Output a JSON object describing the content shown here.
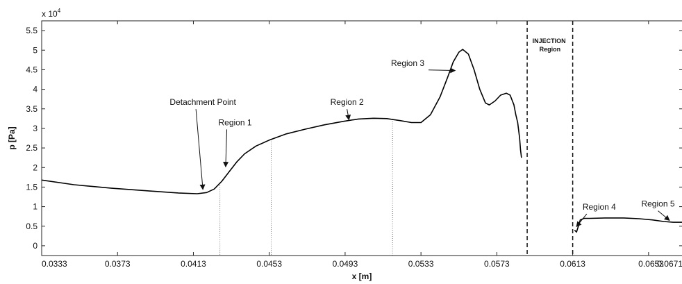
{
  "chart_data": {
    "type": "line",
    "title": "",
    "xlabel": "x [m]",
    "ylabel": "p [Pa]",
    "y_multiplier": "x 10",
    "y_multiplier_exponent": "4",
    "xlim": [
      0.0333,
      0.0671
    ],
    "ylim": [
      -2500,
      57500
    ],
    "xticks": [
      0.0333,
      0.0373,
      0.0413,
      0.0453,
      0.0493,
      0.0533,
      0.0573,
      0.0613,
      0.0653,
      0.0671
    ],
    "xtick_labels": [
      "0.0333",
      "0.0373",
      "0.0413",
      "0.0453",
      "0.0493",
      "0.0533",
      "0.0573",
      "0.0613",
      "0.0653",
      "0.0671"
    ],
    "yticks": [
      0,
      5000,
      10000,
      15000,
      20000,
      25000,
      30000,
      35000,
      40000,
      45000,
      50000,
      55000
    ],
    "ytick_labels": [
      "0",
      "0.5",
      "1",
      "1.5",
      "2",
      "2.5",
      "3",
      "3.5",
      "4",
      "4.5",
      "5",
      "5.5"
    ],
    "grid": false,
    "legend": "none",
    "series": [
      {
        "segments": [
          {
            "x": [
              0.0333,
              0.035,
              0.037,
              0.039,
              0.0405,
              0.0415,
              0.042,
              0.0424,
              0.0428,
              0.0432,
              0.0436,
              0.044,
              0.0446,
              0.0453,
              0.0462,
              0.0472,
              0.0482,
              0.0492,
              0.05,
              0.0508,
              0.0515,
              0.0522,
              0.0528,
              0.0533,
              0.0538,
              0.0543,
              0.0547,
              0.055,
              0.0553,
              0.0555,
              0.0558,
              0.0561,
              0.0564,
              0.0567,
              0.0569,
              0.0572,
              0.0575,
              0.0578,
              0.058,
              0.0582,
              0.0583,
              0.0584,
              0.0585,
              0.05855,
              0.0586
            ],
            "y": [
              16800,
              15600,
              14700,
              14000,
              13500,
              13300,
              13600,
              14500,
              16500,
              19000,
              21500,
              23500,
              25500,
              27000,
              28600,
              29800,
              30900,
              31800,
              32400,
              32600,
              32500,
              32000,
              31500,
              31500,
              33500,
              38000,
              43000,
              47000,
              49500,
              50200,
              49000,
              45000,
              40000,
              36500,
              36000,
              37000,
              38500,
              39000,
              38500,
              36000,
              33500,
              31500,
              27500,
              24500,
              22500
            ]
          },
          {
            "x": [
              0.0614,
              0.0615,
              0.0616,
              0.0617,
              0.0619,
              0.0622,
              0.063,
              0.064,
              0.0648,
              0.0655,
              0.0661,
              0.0666,
              0.0671
            ],
            "y": [
              4000,
              3500,
              5000,
              6600,
              7000,
              7000,
              7100,
              7100,
              6900,
              6600,
              6200,
              6000,
              6000
            ]
          }
        ]
      }
    ],
    "vertical_markers": [
      {
        "x": 0.0427,
        "style": "dotted"
      },
      {
        "x": 0.0454,
        "style": "dotted"
      },
      {
        "x": 0.0518,
        "style": "dotted"
      },
      {
        "x": 0.0589,
        "style": "dashed"
      },
      {
        "x": 0.0613,
        "style": "dashed"
      }
    ],
    "annotations": [
      {
        "text": "Detachment Point",
        "text_x": 0.0418,
        "text_y": 36000,
        "arrow_to_x": 0.0418,
        "arrow_to_y": 14400
      },
      {
        "text": "Region 1",
        "text_x": 0.0435,
        "text_y": 30800,
        "arrow_to_x": 0.043,
        "arrow_to_y": 20200
      },
      {
        "text": "Region 2",
        "text_x": 0.0494,
        "text_y": 36000,
        "arrow_to_x": 0.0495,
        "arrow_to_y": 32200
      },
      {
        "text": "Region 3",
        "text_x": 0.0526,
        "text_y": 46000,
        "arrow_to_x": 0.0551,
        "arrow_to_y": 44800
      },
      {
        "text": "Region 4",
        "text_x": 0.0627,
        "text_y": 9200,
        "arrow_to_x": 0.0615,
        "arrow_to_y": 4900
      },
      {
        "text": "Region 5",
        "text_x": 0.0658,
        "text_y": 10000,
        "arrow_to_x": 0.0664,
        "arrow_to_y": 6500
      }
    ],
    "region_label": {
      "lines": [
        "INJECTION",
        "Region"
      ],
      "x": 0.0601
    }
  }
}
